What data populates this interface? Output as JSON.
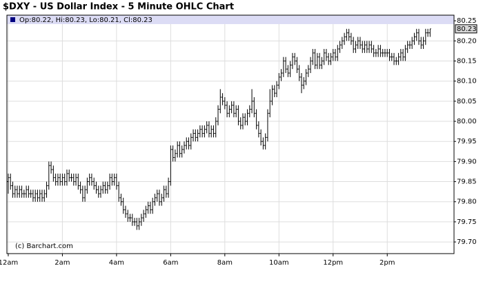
{
  "chart_data": {
    "type": "ohlc",
    "title": "$DXY - US Dollar Index - 5 Minute OHLC Chart",
    "info": "Op:80.22, Hi:80.23, Lo:80.21, Cl:80.23",
    "credit": "(c) Barchart.com",
    "color": "#000000",
    "info_color": "#dcdcf5",
    "grid": true,
    "xlim": [
      -3,
      988
    ],
    "xticks": [
      {
        "value": 0,
        "label": "12am"
      },
      {
        "value": 120,
        "label": "2am"
      },
      {
        "value": 240,
        "label": "4am"
      },
      {
        "value": 360,
        "label": "6am"
      },
      {
        "value": 480,
        "label": "8am"
      },
      {
        "value": 600,
        "label": "10am"
      },
      {
        "value": 720,
        "label": "12pm"
      },
      {
        "value": 840,
        "label": "2pm"
      }
    ],
    "ylim": [
      79.671,
      80.264
    ],
    "yticks": [
      {
        "value": 79.7,
        "label": "79.70"
      },
      79.75,
      {
        "value": 79.8,
        "label": "79.80"
      },
      79.85,
      {
        "value": 79.9,
        "label": "79.90"
      },
      79.95,
      {
        "value": 80.0,
        "label": "80.00"
      },
      80.05,
      {
        "value": 80.1,
        "label": "80.10"
      },
      80.15,
      {
        "value": 80.2,
        "label": "80.20"
      },
      80.25
    ],
    "x": [
      0,
      5,
      10,
      15,
      20,
      25,
      30,
      35,
      40,
      45,
      50,
      55,
      60,
      65,
      70,
      75,
      80,
      85,
      90,
      95,
      100,
      105,
      110,
      115,
      120,
      125,
      130,
      135,
      140,
      145,
      150,
      155,
      160,
      165,
      170,
      175,
      180,
      185,
      190,
      195,
      200,
      205,
      210,
      215,
      220,
      225,
      230,
      235,
      240,
      245,
      250,
      255,
      260,
      265,
      270,
      275,
      280,
      285,
      290,
      295,
      300,
      305,
      310,
      315,
      320,
      325,
      330,
      335,
      340,
      345,
      350,
      355,
      360,
      365,
      370,
      375,
      380,
      385,
      390,
      395,
      400,
      405,
      410,
      415,
      420,
      425,
      430,
      435,
      440,
      445,
      450,
      455,
      460,
      465,
      470,
      475,
      480,
      485,
      490,
      495,
      500,
      505,
      510,
      515,
      520,
      525,
      530,
      535,
      540,
      545,
      550,
      555,
      560,
      565,
      570,
      575,
      580,
      585,
      590,
      595,
      600,
      605,
      610,
      615,
      620,
      625,
      630,
      635,
      640,
      645,
      650,
      655,
      660,
      665,
      670,
      675,
      680,
      685,
      690,
      695,
      700,
      705,
      710,
      715,
      720,
      725,
      730,
      735,
      740,
      745,
      750,
      755,
      760,
      765,
      770,
      775,
      780,
      785,
      790,
      795,
      800,
      805,
      810,
      815,
      820,
      825,
      830,
      835,
      840,
      845,
      850,
      855,
      860,
      865,
      870,
      875,
      880,
      885,
      890,
      895,
      900,
      905,
      910,
      915,
      920,
      925,
      930,
      935
    ],
    "open": [
      79.85,
      79.86,
      79.84,
      79.82,
      79.83,
      79.82,
      79.83,
      79.82,
      79.82,
      79.83,
      79.82,
      79.82,
      79.81,
      79.82,
      79.81,
      79.82,
      79.81,
      79.82,
      79.84,
      79.89,
      79.88,
      79.86,
      79.85,
      79.86,
      79.85,
      79.86,
      79.85,
      79.87,
      79.86,
      79.86,
      79.85,
      79.86,
      79.84,
      79.83,
      79.81,
      79.83,
      79.85,
      79.86,
      79.85,
      79.84,
      79.83,
      79.82,
      79.83,
      79.84,
      79.83,
      79.84,
      79.86,
      79.85,
      79.86,
      79.84,
      79.81,
      79.8,
      79.78,
      79.77,
      79.76,
      79.76,
      79.75,
      79.75,
      79.74,
      79.75,
      79.76,
      79.77,
      79.78,
      79.79,
      79.78,
      79.8,
      79.81,
      79.82,
      79.8,
      79.81,
      79.83,
      79.82,
      79.85,
      79.93,
      79.91,
      79.92,
      79.94,
      79.92,
      79.93,
      79.94,
      79.95,
      79.94,
      79.96,
      79.97,
      79.96,
      79.97,
      79.98,
      79.97,
      79.98,
      79.99,
      79.97,
      79.98,
      79.97,
      80.0,
      80.03,
      80.06,
      80.05,
      80.04,
      80.02,
      80.03,
      80.04,
      80.02,
      80.03,
      80.0,
      79.99,
      80.01,
      80.0,
      80.02,
      80.03,
      80.05,
      80.02,
      79.99,
      79.97,
      79.95,
      79.94,
      79.96,
      80.02,
      80.05,
      80.08,
      80.07,
      80.09,
      80.11,
      80.12,
      80.15,
      80.13,
      80.12,
      80.14,
      80.16,
      80.15,
      80.13,
      80.11,
      80.09,
      80.1,
      80.12,
      80.13,
      80.15,
      80.17,
      80.14,
      80.16,
      80.14,
      80.15,
      80.17,
      80.16,
      80.15,
      80.16,
      80.17,
      80.16,
      80.18,
      80.19,
      80.2,
      80.21,
      80.22,
      80.21,
      80.2,
      80.18,
      80.19,
      80.2,
      80.19,
      80.18,
      80.19,
      80.18,
      80.19,
      80.18,
      80.17,
      80.17,
      80.18,
      80.17,
      80.17,
      80.17,
      80.17,
      80.16,
      80.16,
      80.15,
      80.15,
      80.16,
      80.17,
      80.16,
      80.18,
      80.19,
      80.19,
      80.2,
      80.21,
      80.22,
      80.2,
      80.19,
      80.2,
      80.22,
      80.22
    ],
    "high": [
      79.87,
      79.87,
      79.85,
      79.84,
      79.84,
      79.84,
      79.84,
      79.83,
      79.84,
      79.84,
      79.83,
      79.83,
      79.83,
      79.83,
      79.83,
      79.83,
      79.83,
      79.85,
      79.9,
      79.9,
      79.89,
      79.87,
      79.87,
      79.87,
      79.87,
      79.87,
      79.88,
      79.88,
      79.87,
      79.87,
      79.87,
      79.87,
      79.85,
      79.84,
      79.84,
      79.86,
      79.87,
      79.87,
      79.86,
      79.85,
      79.84,
      79.84,
      79.85,
      79.85,
      79.85,
      79.87,
      79.87,
      79.87,
      79.87,
      79.85,
      79.82,
      79.81,
      79.79,
      79.78,
      79.77,
      79.77,
      79.76,
      79.76,
      79.76,
      79.77,
      79.78,
      79.79,
      79.8,
      79.8,
      79.81,
      79.82,
      79.83,
      79.83,
      79.82,
      79.84,
      79.84,
      79.86,
      79.94,
      79.94,
      79.93,
      79.95,
      79.95,
      79.94,
      79.95,
      79.96,
      79.96,
      79.97,
      79.98,
      79.98,
      79.98,
      79.99,
      79.99,
      79.99,
      80.0,
      80.0,
      79.99,
      79.99,
      80.01,
      80.04,
      80.08,
      80.07,
      80.06,
      80.05,
      80.04,
      80.05,
      80.05,
      80.04,
      80.04,
      80.01,
      80.02,
      80.02,
      80.03,
      80.04,
      80.08,
      80.06,
      80.03,
      80.0,
      79.98,
      79.96,
      79.97,
      80.03,
      80.08,
      80.09,
      80.09,
      80.1,
      80.12,
      80.13,
      80.16,
      80.16,
      80.14,
      80.15,
      80.17,
      80.17,
      80.16,
      80.14,
      80.12,
      80.11,
      80.13,
      80.14,
      80.16,
      80.18,
      80.18,
      80.17,
      80.17,
      80.16,
      80.18,
      80.18,
      80.17,
      80.17,
      80.18,
      80.18,
      80.19,
      80.2,
      80.21,
      80.22,
      80.23,
      80.23,
      80.22,
      80.21,
      80.2,
      80.21,
      80.21,
      80.2,
      80.2,
      80.2,
      80.2,
      80.2,
      80.19,
      80.18,
      80.19,
      80.19,
      80.18,
      80.18,
      80.18,
      80.18,
      80.17,
      80.17,
      80.16,
      80.17,
      80.18,
      80.18,
      80.19,
      80.2,
      80.2,
      80.21,
      80.22,
      80.23,
      80.23,
      80.21,
      80.21,
      80.23,
      80.23,
      80.23
    ],
    "low": [
      79.82,
      79.83,
      79.81,
      79.81,
      79.81,
      79.81,
      79.81,
      79.81,
      79.81,
      79.81,
      79.81,
      79.8,
      79.8,
      79.8,
      79.8,
      79.8,
      79.8,
      79.81,
      79.83,
      79.87,
      79.85,
      79.84,
      79.84,
      79.84,
      79.84,
      79.84,
      79.84,
      79.85,
      79.85,
      79.84,
      79.84,
      79.83,
      79.82,
      79.8,
      79.8,
      79.82,
      79.84,
      79.84,
      79.83,
      79.82,
      79.81,
      79.81,
      79.82,
      79.82,
      79.82,
      79.83,
      79.84,
      79.84,
      79.83,
      79.8,
      79.79,
      79.77,
      79.76,
      79.75,
      79.75,
      79.74,
      79.74,
      79.73,
      79.73,
      79.74,
      79.75,
      79.76,
      79.77,
      79.77,
      79.77,
      79.79,
      79.8,
      79.79,
      79.79,
      79.8,
      79.81,
      79.81,
      79.84,
      79.9,
      79.9,
      79.91,
      79.91,
      79.91,
      79.92,
      79.93,
      79.93,
      79.93,
      79.95,
      79.95,
      79.95,
      79.96,
      79.96,
      79.96,
      79.97,
      79.96,
      79.96,
      79.96,
      79.96,
      79.99,
      80.02,
      80.04,
      80.03,
      80.01,
      80.01,
      80.02,
      80.01,
      80.01,
      79.99,
      79.98,
      79.98,
      79.99,
      79.99,
      80.01,
      80.02,
      80.01,
      79.98,
      79.96,
      79.94,
      79.93,
      79.93,
      79.95,
      80.01,
      80.04,
      80.06,
      80.06,
      80.08,
      80.1,
      80.11,
      80.12,
      80.11,
      80.11,
      80.13,
      80.14,
      80.12,
      80.1,
      80.07,
      80.08,
      80.09,
      80.11,
      80.12,
      80.14,
      80.13,
      80.13,
      80.13,
      80.13,
      80.14,
      80.15,
      80.14,
      80.14,
      80.15,
      80.15,
      80.15,
      80.17,
      80.18,
      80.19,
      80.2,
      80.2,
      80.19,
      80.17,
      80.17,
      80.18,
      80.18,
      80.17,
      80.17,
      80.17,
      80.17,
      80.17,
      80.16,
      80.16,
      80.16,
      80.16,
      80.16,
      80.16,
      80.16,
      80.15,
      80.15,
      80.14,
      80.14,
      80.14,
      80.15,
      80.15,
      80.15,
      80.17,
      80.18,
      80.18,
      80.19,
      80.2,
      80.19,
      80.18,
      80.18,
      80.19,
      80.21,
      80.21
    ],
    "close": [
      79.86,
      79.84,
      79.82,
      79.83,
      79.82,
      79.83,
      79.82,
      79.82,
      79.83,
      79.82,
      79.82,
      79.81,
      79.82,
      79.81,
      79.82,
      79.81,
      79.82,
      79.84,
      79.89,
      79.88,
      79.86,
      79.85,
      79.86,
      79.85,
      79.86,
      79.85,
      79.87,
      79.86,
      79.86,
      79.85,
      79.86,
      79.84,
      79.83,
      79.81,
      79.83,
      79.85,
      79.86,
      79.85,
      79.84,
      79.83,
      79.82,
      79.83,
      79.84,
      79.83,
      79.84,
      79.86,
      79.85,
      79.86,
      79.84,
      79.81,
      79.8,
      79.78,
      79.77,
      79.76,
      79.76,
      79.75,
      79.75,
      79.74,
      79.75,
      79.76,
      79.77,
      79.78,
      79.79,
      79.78,
      79.8,
      79.81,
      79.82,
      79.8,
      79.81,
      79.83,
      79.82,
      79.85,
      79.93,
      79.91,
      79.92,
      79.94,
      79.92,
      79.93,
      79.94,
      79.95,
      79.94,
      79.96,
      79.97,
      79.96,
      79.97,
      79.98,
      79.97,
      79.98,
      79.99,
      79.97,
      79.98,
      79.97,
      80.0,
      80.03,
      80.06,
      80.05,
      80.04,
      80.02,
      80.03,
      80.04,
      80.02,
      80.03,
      80.0,
      79.99,
      80.01,
      80.0,
      80.02,
      80.03,
      80.05,
      80.02,
      79.99,
      79.97,
      79.95,
      79.94,
      79.96,
      80.02,
      80.05,
      80.08,
      80.07,
      80.09,
      80.11,
      80.12,
      80.15,
      80.13,
      80.12,
      80.14,
      80.16,
      80.15,
      80.13,
      80.11,
      80.09,
      80.1,
      80.12,
      80.13,
      80.15,
      80.17,
      80.14,
      80.16,
      80.14,
      80.15,
      80.17,
      80.16,
      80.15,
      80.16,
      80.17,
      80.16,
      80.18,
      80.19,
      80.2,
      80.21,
      80.22,
      80.21,
      80.2,
      80.18,
      80.19,
      80.2,
      80.19,
      80.18,
      80.19,
      80.18,
      80.19,
      80.18,
      80.17,
      80.17,
      80.18,
      80.17,
      80.17,
      80.17,
      80.17,
      80.16,
      80.16,
      80.15,
      80.15,
      80.16,
      80.17,
      80.16,
      80.18,
      80.19,
      80.19,
      80.2,
      80.21,
      80.22,
      80.2,
      80.19,
      80.2,
      80.22,
      80.22,
      80.23
    ]
  }
}
